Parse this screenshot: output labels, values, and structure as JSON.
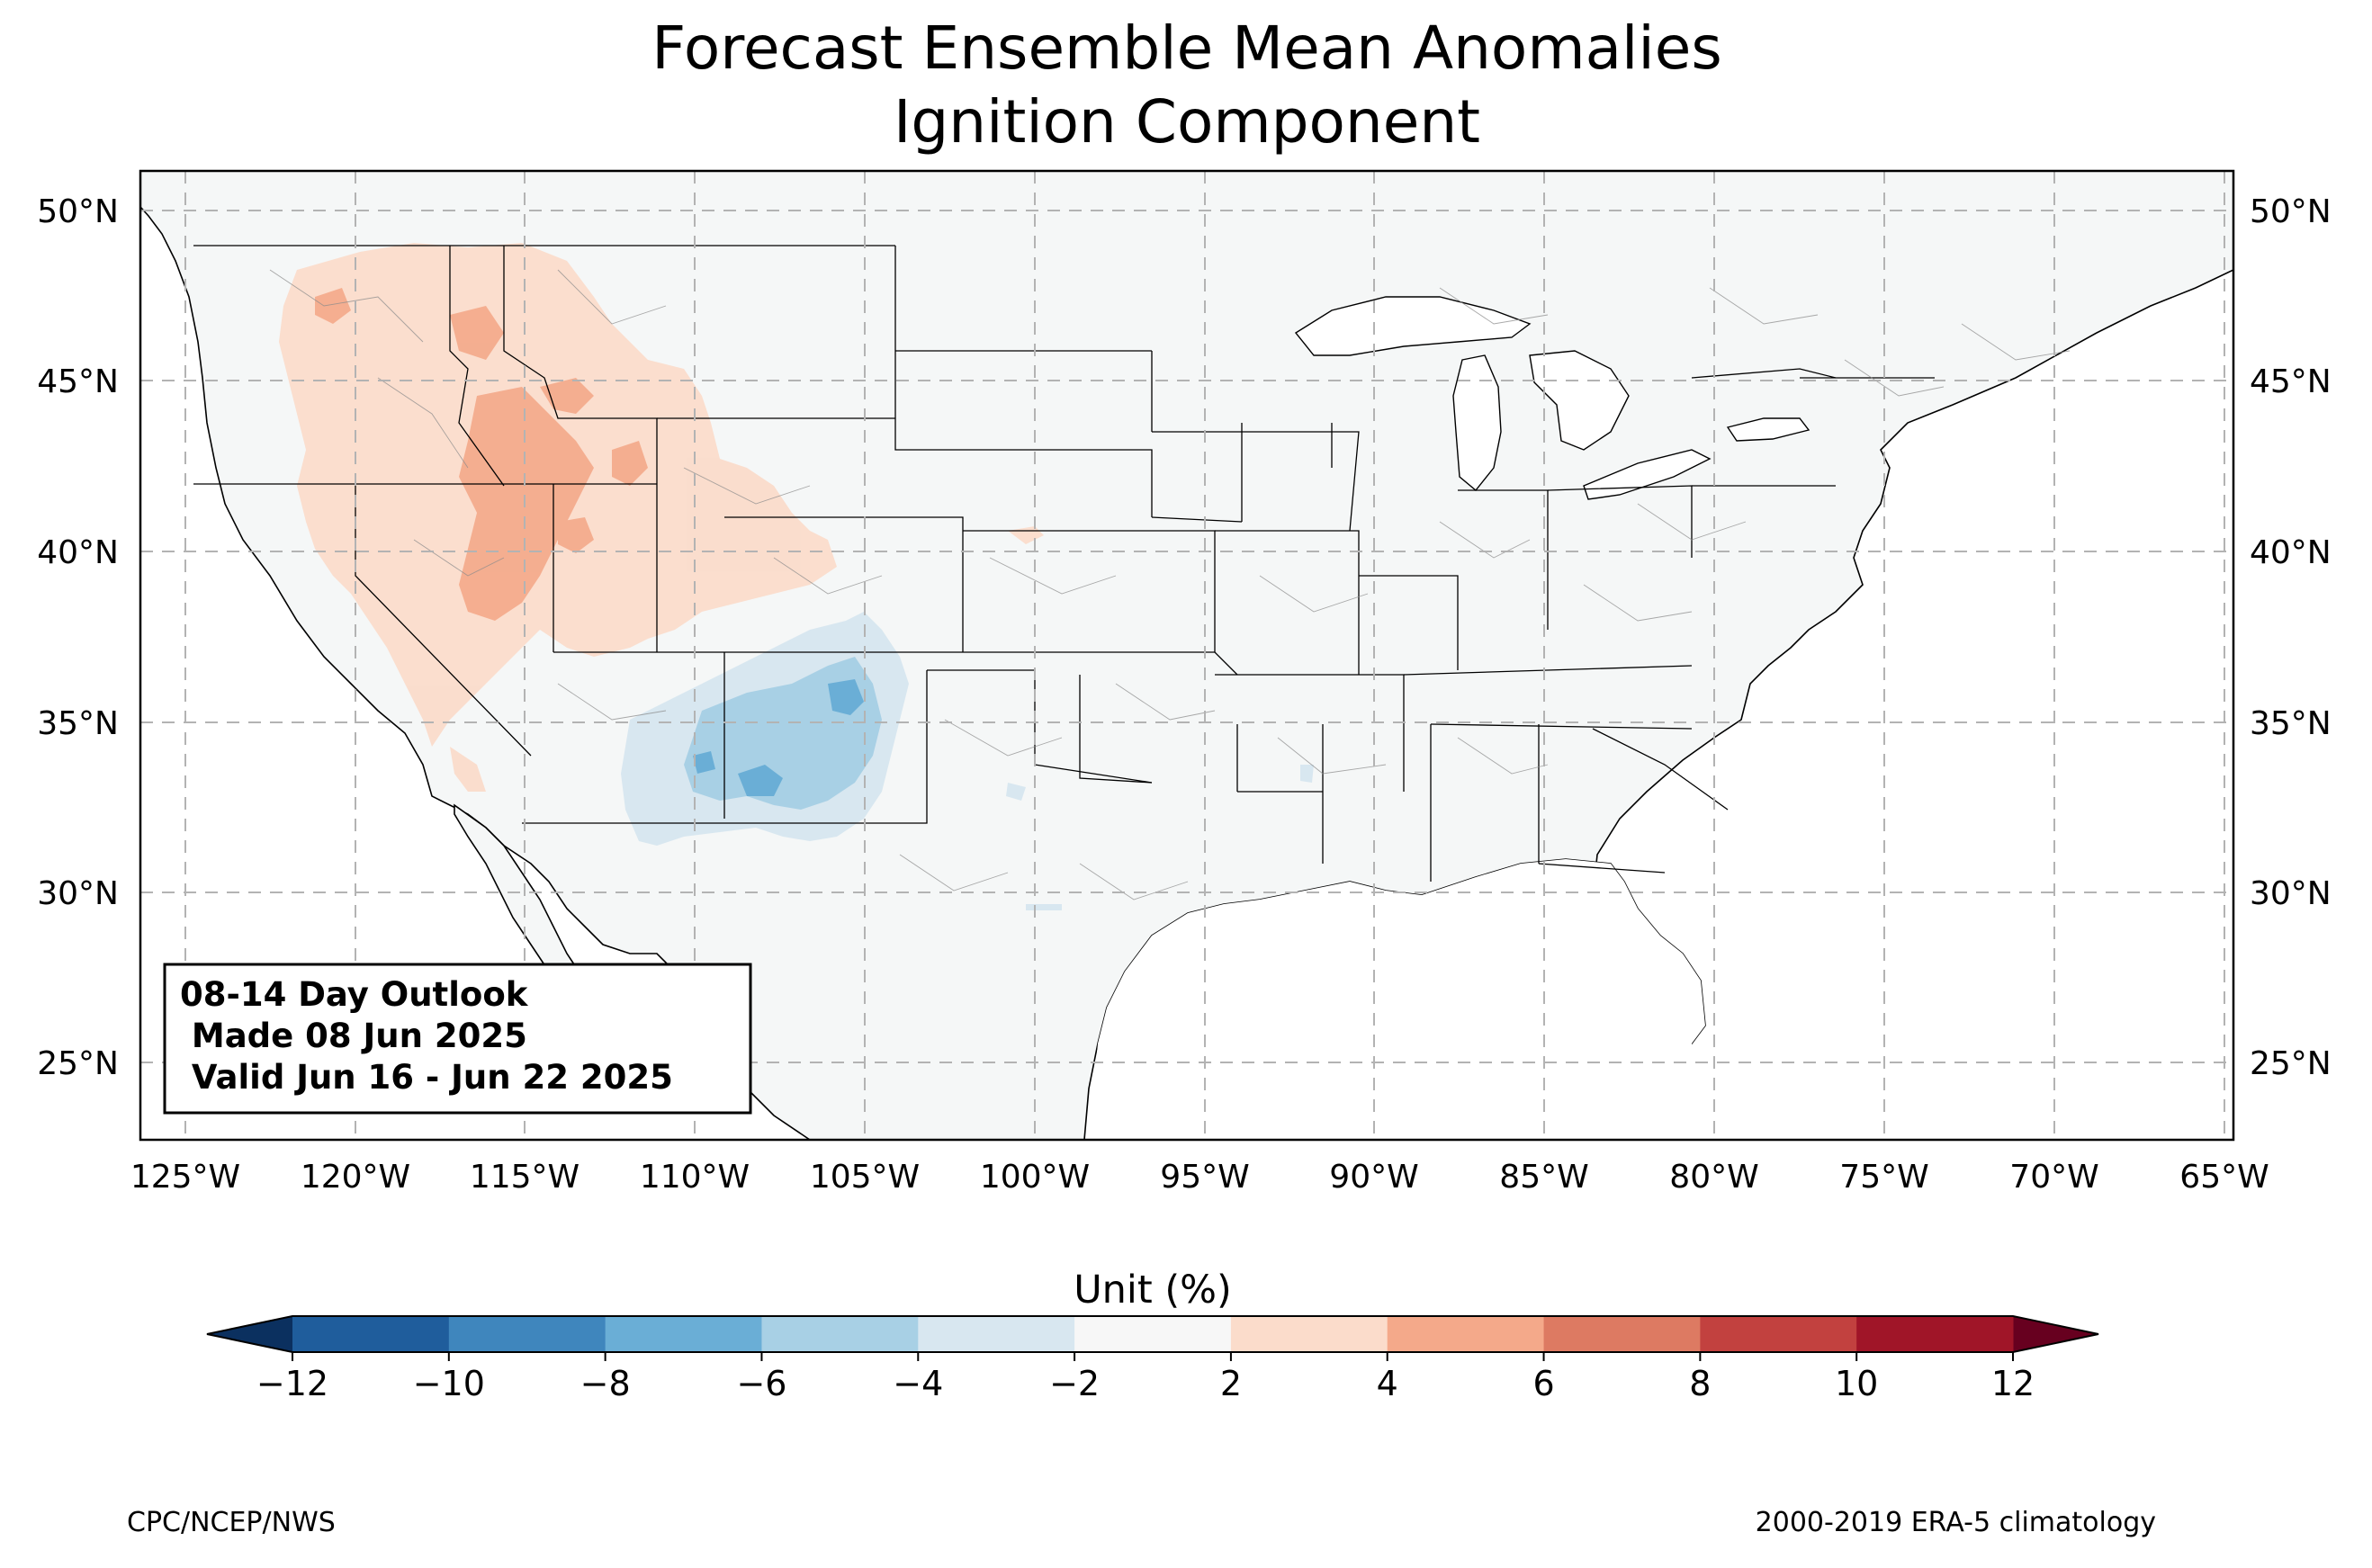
{
  "title": {
    "line1": "Forecast Ensemble Mean Anomalies",
    "line2": "Ignition Component"
  },
  "map": {
    "projection": "PlateCarree",
    "lon_range": [
      -126.3,
      -64.8
    ],
    "lat_range": [
      22.7,
      51.2
    ],
    "gridlines": "dashed gray",
    "lat_ticks": [
      "50°N",
      "45°N",
      "40°N",
      "35°N",
      "30°N",
      "25°N"
    ],
    "lon_ticks": [
      "125°W",
      "120°W",
      "115°W",
      "110°W",
      "105°W",
      "100°W",
      "95°W",
      "90°W",
      "85°W",
      "80°W",
      "75°W",
      "70°W",
      "65°W"
    ],
    "background_color": "#f5f7f7",
    "anomaly_regions": [
      {
        "name": "northwest-interior",
        "sign": "positive",
        "level": "2 to 4"
      },
      {
        "name": "great-basin-core",
        "sign": "positive",
        "level": "4 to 6"
      },
      {
        "name": "southwest-new-mexico",
        "sign": "negative",
        "level": "-2 to -6"
      },
      {
        "name": "southwest-core",
        "sign": "negative",
        "level": "-6 to -8"
      }
    ]
  },
  "info_box": {
    "line1": "08-14 Day Outlook",
    "line2": " Made 08 Jun 2025",
    "line3": " Valid Jun 16 - Jun 22 2025"
  },
  "colorbar": {
    "label": "Unit (%)",
    "ticks": [
      "−12",
      "−10",
      "−8",
      "−6",
      "−4",
      "−2",
      "2",
      "4",
      "6",
      "8",
      "10",
      "12"
    ],
    "bins": [
      {
        "from": -12,
        "to": -10,
        "color": "#1f5d9c"
      },
      {
        "from": -10,
        "to": -8,
        "color": "#3f86bd"
      },
      {
        "from": -8,
        "to": -6,
        "color": "#6aaed6"
      },
      {
        "from": -6,
        "to": -4,
        "color": "#a8d0e5"
      },
      {
        "from": -4,
        "to": -2,
        "color": "#d8e7f0"
      },
      {
        "from": -2,
        "to": 2,
        "color": "#f7f7f7"
      },
      {
        "from": 2,
        "to": 4,
        "color": "#fbdccb"
      },
      {
        "from": 4,
        "to": 6,
        "color": "#f4a98a"
      },
      {
        "from": 6,
        "to": 8,
        "color": "#dd7a62"
      },
      {
        "from": 8,
        "to": 10,
        "color": "#c2413f"
      },
      {
        "from": 10,
        "to": 12,
        "color": "#a01528"
      }
    ],
    "under_color": "#0b305f",
    "over_color": "#67001f"
  },
  "footer": {
    "left": "CPC/NCEP/NWS",
    "right": "2000-2019 ERA-5 climatology"
  }
}
